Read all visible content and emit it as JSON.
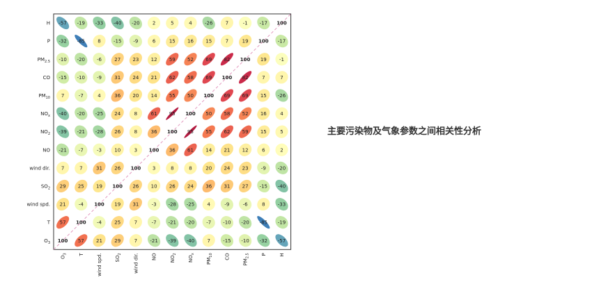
{
  "caption": "主要污染物及气象参数之间相关性分析",
  "chart_data": {
    "type": "heatmap",
    "subtype": "correlation-ellipse-matrix",
    "rows": [
      "H",
      "P",
      "PM2.5",
      "CO",
      "PM10",
      "NOx",
      "NO2",
      "NO",
      "wind dir.",
      "SO2",
      "wind spd.",
      "T",
      "O3"
    ],
    "row_labels": [
      {
        "main": "H",
        "sub": ""
      },
      {
        "main": "P",
        "sub": ""
      },
      {
        "main": "PM",
        "sub": "2.5"
      },
      {
        "main": "CO",
        "sub": ""
      },
      {
        "main": "PM",
        "sub": "10"
      },
      {
        "main": "NO",
        "sub": "x"
      },
      {
        "main": "NO",
        "sub": "2"
      },
      {
        "main": "NO",
        "sub": ""
      },
      {
        "main": "wind dir.",
        "sub": ""
      },
      {
        "main": "SO",
        "sub": "2"
      },
      {
        "main": "wind spd.",
        "sub": ""
      },
      {
        "main": "T",
        "sub": ""
      },
      {
        "main": "O",
        "sub": "3"
      }
    ],
    "columns": [
      "O3",
      "T",
      "wind spd.",
      "SO2",
      "wind dir.",
      "NO",
      "NO2",
      "NOx",
      "PM10",
      "CO",
      "PM2.5",
      "P",
      "H"
    ],
    "col_labels": [
      {
        "main": "O",
        "sub": "3"
      },
      {
        "main": "T",
        "sub": ""
      },
      {
        "main": "wind spd.",
        "sub": ""
      },
      {
        "main": "SO",
        "sub": "2"
      },
      {
        "main": "wind dir.",
        "sub": ""
      },
      {
        "main": "NO",
        "sub": ""
      },
      {
        "main": "NO",
        "sub": "2"
      },
      {
        "main": "NO",
        "sub": "x"
      },
      {
        "main": "PM",
        "sub": "10"
      },
      {
        "main": "CO",
        "sub": ""
      },
      {
        "main": "PM",
        "sub": "2.5"
      },
      {
        "main": "P",
        "sub": ""
      },
      {
        "main": "H",
        "sub": ""
      }
    ],
    "values": [
      [
        -57,
        -19,
        -33,
        -40,
        -20,
        2,
        5,
        4,
        -26,
        7,
        -1,
        -17,
        100
      ],
      [
        -32,
        -85,
        8,
        -15,
        -9,
        6,
        15,
        16,
        15,
        7,
        19,
        100,
        -17
      ],
      [
        -10,
        -20,
        -6,
        27,
        23,
        12,
        59,
        52,
        69,
        82,
        100,
        19,
        -1
      ],
      [
        -15,
        -10,
        -9,
        31,
        24,
        21,
        62,
        58,
        69,
        100,
        82,
        7,
        7
      ],
      [
        7,
        -7,
        4,
        36,
        20,
        14,
        55,
        50,
        100,
        69,
        69,
        15,
        -26
      ],
      [
        -40,
        -20,
        -25,
        24,
        8,
        61,
        95,
        100,
        50,
        58,
        52,
        16,
        4
      ],
      [
        -39,
        -21,
        -28,
        26,
        8,
        36,
        100,
        95,
        55,
        62,
        59,
        15,
        5
      ],
      [
        -21,
        -7,
        -3,
        10,
        3,
        100,
        36,
        61,
        14,
        21,
        12,
        6,
        2
      ],
      [
        7,
        7,
        31,
        26,
        100,
        3,
        8,
        8,
        20,
        24,
        23,
        -9,
        -20
      ],
      [
        29,
        25,
        19,
        100,
        26,
        10,
        26,
        24,
        36,
        31,
        27,
        -15,
        -40
      ],
      [
        21,
        -4,
        100,
        19,
        31,
        -3,
        -28,
        -25,
        4,
        -9,
        -6,
        8,
        -33
      ],
      [
        57,
        100,
        -4,
        25,
        7,
        -7,
        -21,
        -20,
        -7,
        -10,
        -20,
        -85,
        -19
      ],
      [
        100,
        57,
        21,
        29,
        7,
        -21,
        -39,
        -40,
        7,
        -15,
        -10,
        -32,
        -57
      ]
    ],
    "value_range": [
      -100,
      100
    ],
    "diagonal_value": 100,
    "color_scale": "spectral",
    "colors": {
      "strong_negative": "#2b6bb5",
      "moderate_negative": "#7cc59a",
      "neutral": "#ffffbf",
      "moderate_positive": "#fdae61",
      "strong_positive": "#c21c4e"
    }
  }
}
